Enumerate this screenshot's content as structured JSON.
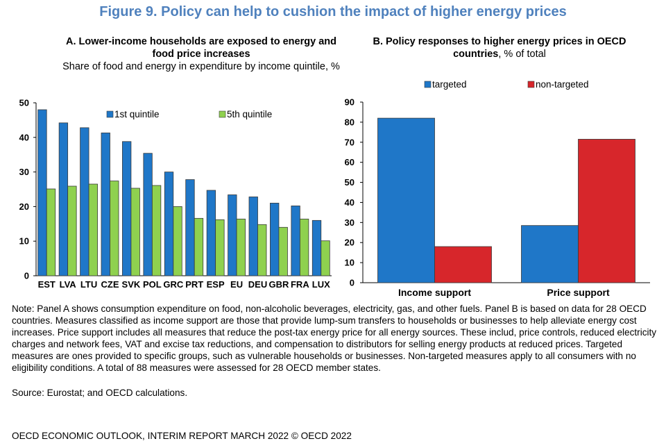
{
  "figure_title": "Figure 9. Policy can help to cushion the impact of higher energy prices",
  "note": "Note: Panel A shows consumption expenditure on food, non-alcoholic beverages, electricity, gas, and other fuels. Panel B is based on data for 28 OECD countries. Measures classified as income support are those that provide lump-sum transfers to households or businesses to help alleviate energy cost increases. Price support includes all measures that reduce the post-tax energy price for all energy sources. These includ, price controls, reduced electricity charges and network fees, VAT and excise tax reductions, and compensation to distributors for selling energy products at reduced prices. Targeted measures are ones provided to specific groups, such as vulnerable households or businesses. Non-targeted measures apply to all consumers with no eligibility conditions. A total of 88 measures were assessed for 28 OECD member states.",
  "source": "Source: Eurostat; and OECD calculations.",
  "footer": "OECD ECONOMIC OUTLOOK, INTERIM REPORT MARCH 2022 © OECD 2022",
  "chart_data": [
    {
      "type": "bar",
      "title": "A. Lower-income households are exposed to energy and food price increases",
      "subtitle": "Share of food and energy in expenditure by income quintile, %",
      "categories": [
        "EST",
        "LVA",
        "LTU",
        "CZE",
        "SVK",
        "POL",
        "GRC",
        "PRT",
        "ESP",
        "EU",
        "DEU",
        "GBR",
        "FRA",
        "LUX"
      ],
      "series": [
        {
          "name": "1st quintile",
          "color": "#1f77c8",
          "values": [
            48,
            44.2,
            42.8,
            41.3,
            38.8,
            35.4,
            30,
            27.8,
            24.7,
            23.4,
            22.8,
            21,
            20.2,
            16
          ]
        },
        {
          "name": "5th quintile",
          "color": "#8fd14f",
          "values": [
            25.1,
            25.9,
            26.5,
            27.4,
            25.3,
            26.1,
            20,
            16.6,
            16.2,
            16.4,
            14.8,
            14,
            16.4,
            10.1
          ]
        }
      ],
      "ylim": [
        0,
        50
      ],
      "yticks": [
        0,
        10,
        20,
        30,
        40,
        50
      ],
      "legend": "top"
    },
    {
      "type": "bar",
      "title": "B. Policy responses to higher energy prices in OECD countries",
      "subtitle": ", % of total",
      "categories": [
        "Income support",
        "Price support"
      ],
      "series": [
        {
          "name": "targeted",
          "color": "#1f77c8",
          "values": [
            82,
            28.5
          ]
        },
        {
          "name": "non-targeted",
          "color": "#d7262b",
          "values": [
            18,
            71.5
          ]
        }
      ],
      "ylim": [
        0,
        90
      ],
      "yticks": [
        0,
        10,
        20,
        30,
        40,
        50,
        60,
        70,
        80,
        90
      ],
      "legend": "top"
    }
  ]
}
